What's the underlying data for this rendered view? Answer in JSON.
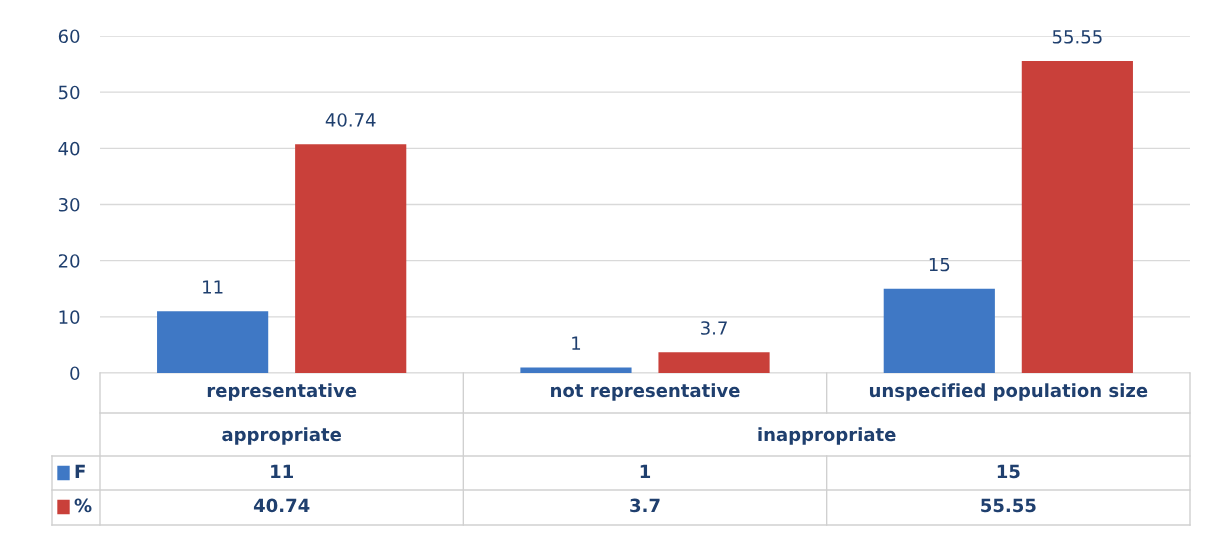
{
  "chart_data": {
    "type": "bar",
    "categories": [
      "representative",
      "not representative",
      "unspecified population size"
    ],
    "annotations": [
      "appropriate",
      "inappropriate",
      "11",
      "1",
      "15",
      "40.74",
      "3.7",
      "55.55"
    ],
    "series": [
      {
        "name": "F",
        "color": "#3f78c5",
        "values": [
          11,
          1,
          15
        ]
      },
      {
        "name": "%",
        "color": "#c9403a",
        "values": [
          40.74,
          3.7,
          55.55
        ]
      }
    ],
    "ylim": [
      0,
      60
    ],
    "yticks": [
      0,
      10,
      20,
      30,
      40,
      50,
      60
    ],
    "grid": "y",
    "data_labels": true,
    "legend": "bottom"
  }
}
